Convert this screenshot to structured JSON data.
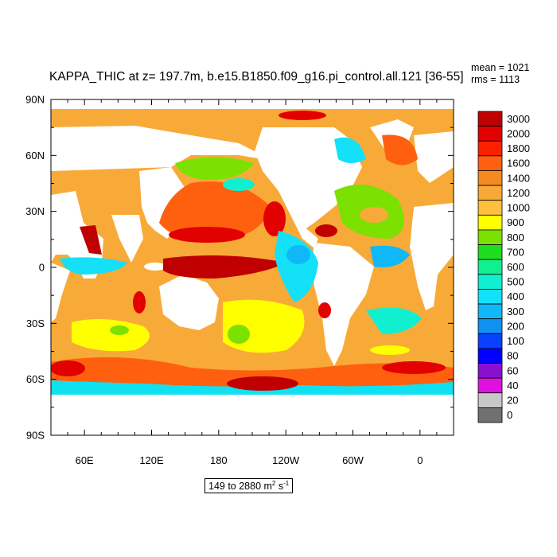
{
  "title": "KAPPA_THIC at z= 197.7m, b.e15.B1850.f09_g16.pi_control.all.121 [36-55]",
  "stats": {
    "mean": "mean = 1021",
    "rms": "rms = 1113"
  },
  "units": {
    "range": "149 to 2880 m",
    "exp1": "2",
    "mid": " s",
    "exp2": "-1"
  },
  "map": {
    "lon_range": [
      30,
      390
    ],
    "lat_range": [
      -90,
      90
    ],
    "lat_ticks": [
      {
        "value": 90,
        "label": "90N"
      },
      {
        "value": 60,
        "label": "60N"
      },
      {
        "value": 30,
        "label": "30N"
      },
      {
        "value": 0,
        "label": "0"
      },
      {
        "value": -30,
        "label": "30S"
      },
      {
        "value": -60,
        "label": "60S"
      },
      {
        "value": -90,
        "label": "90S"
      }
    ],
    "lon_ticks": [
      {
        "value": 60,
        "label": "60E"
      },
      {
        "value": 120,
        "label": "120E"
      },
      {
        "value": 180,
        "label": "180"
      },
      {
        "value": 240,
        "label": "120W"
      },
      {
        "value": 300,
        "label": "60W"
      },
      {
        "value": 360,
        "label": "0"
      }
    ]
  },
  "colorbar": {
    "levels": [
      "3000",
      "2000",
      "1800",
      "1600",
      "1400",
      "1200",
      "1000",
      "900",
      "800",
      "700",
      "600",
      "500",
      "400",
      "300",
      "200",
      "100",
      "80",
      "60",
      "40",
      "20",
      "0"
    ],
    "colors": [
      "#c00000",
      "#e20000",
      "#ff2000",
      "#ff6010",
      "#f58a20",
      "#f8aa38",
      "#ffc040",
      "#ffff00",
      "#7ce000",
      "#1edc1e",
      "#10f090",
      "#10f0d0",
      "#14e0f8",
      "#10b8f8",
      "#1090f0",
      "#0a40ff",
      "#0000ff",
      "#8a10d0",
      "#e010e0",
      "#c8c8c8",
      "#707070"
    ]
  }
}
